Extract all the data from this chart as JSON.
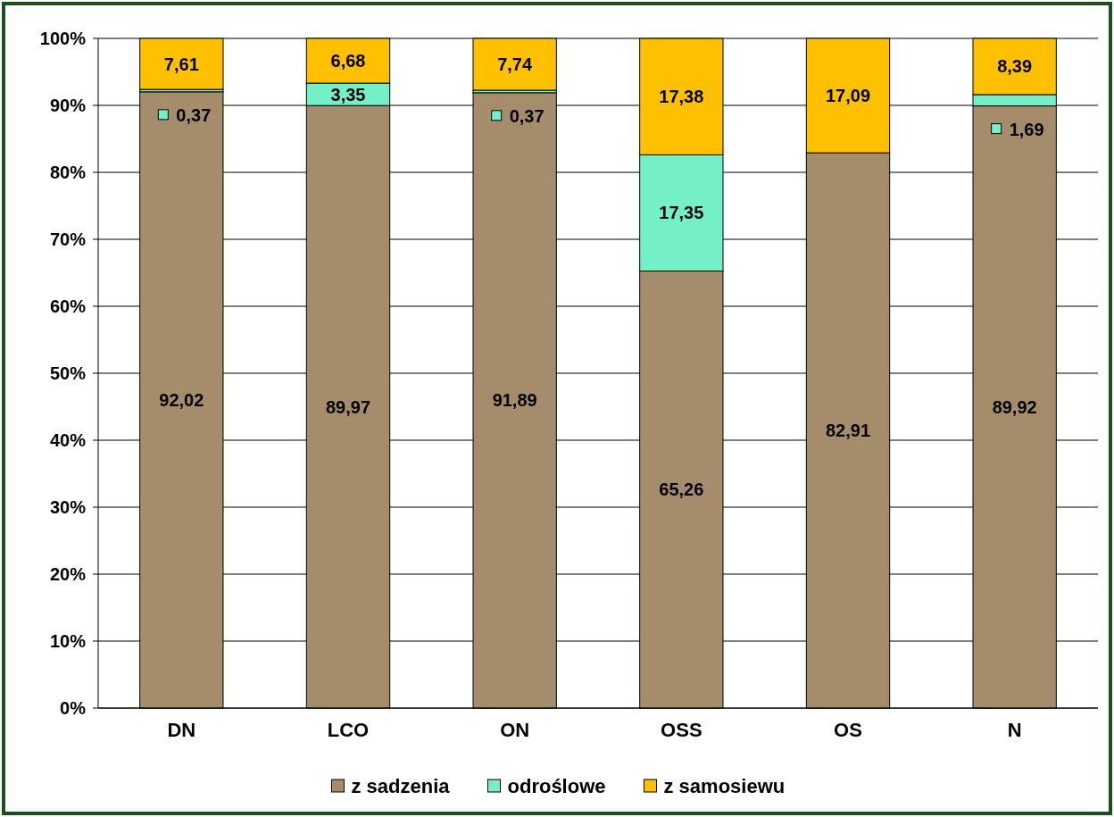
{
  "chart_data": {
    "type": "bar",
    "stacked": true,
    "categories": [
      "DN",
      "LCO",
      "ON",
      "OSS",
      "OS",
      "N"
    ],
    "series": [
      {
        "name": "z sadzenia",
        "color": "#a58c6a",
        "values": [
          92.02,
          89.97,
          91.89,
          65.26,
          82.91,
          89.92
        ],
        "value_labels": [
          "92,02",
          "89,97",
          "91,89",
          "65,26",
          "82,91",
          "89,92"
        ]
      },
      {
        "name": "odroślowe",
        "color": "#74f0c8",
        "values": [
          0.37,
          3.35,
          0.37,
          17.35,
          null,
          1.69
        ],
        "value_labels": [
          "0,37",
          "3,35",
          "0,37",
          "17,35",
          null,
          "1,69"
        ]
      },
      {
        "name": "z samosiewu",
        "color": "#ffc000",
        "values": [
          7.61,
          6.68,
          7.74,
          17.38,
          17.09,
          8.39
        ],
        "value_labels": [
          "7,61",
          "6,68",
          "7,74",
          "17,38",
          "17,09",
          "8,39"
        ]
      }
    ],
    "ylim": [
      0,
      100
    ],
    "yticks": [
      {
        "value": 0,
        "label": "0%"
      },
      {
        "value": 10,
        "label": "10%"
      },
      {
        "value": 20,
        "label": "20%"
      },
      {
        "value": 30,
        "label": "30%"
      },
      {
        "value": 40,
        "label": "40%"
      },
      {
        "value": 50,
        "label": "50%"
      },
      {
        "value": 60,
        "label": "60%"
      },
      {
        "value": 70,
        "label": "70%"
      },
      {
        "value": 80,
        "label": "80%"
      },
      {
        "value": 90,
        "label": "90%"
      },
      {
        "value": 100,
        "label": "100%"
      }
    ],
    "grid": "y",
    "legend": "bottom"
  }
}
